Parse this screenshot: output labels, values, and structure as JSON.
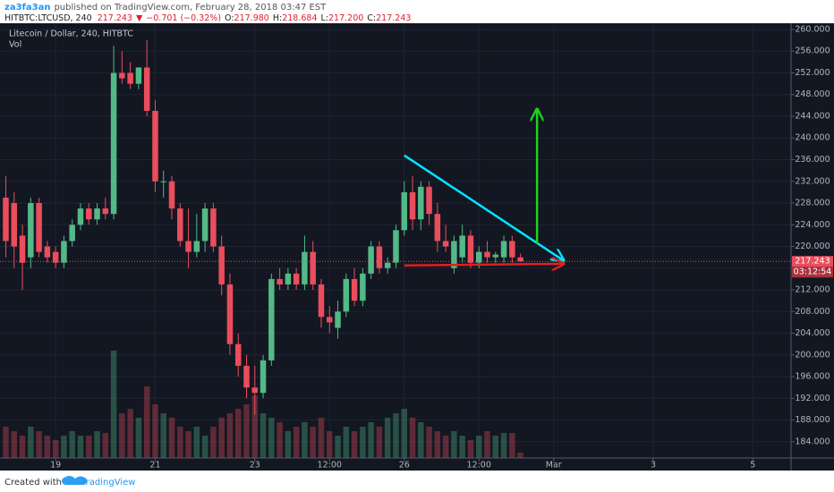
{
  "header": {
    "author": "za3fa3an",
    "published": "published on TradingView.com, February 28, 2018 03:47 EST",
    "symbol": "HITBTC:LTCUSD, 240",
    "last": "217.243",
    "change_arrow": "▼",
    "change": "−0.701 (−0.32%)",
    "ohlc": [
      {
        "label": "O:",
        "value": "217.980"
      },
      {
        "label": "H:",
        "value": "218.684"
      },
      {
        "label": "L:",
        "value": "217.200"
      },
      {
        "label": "C:",
        "value": "217.243"
      }
    ]
  },
  "chart_data": {
    "type": "candlestick",
    "title": "Litecoin / Dollar, 240, HITBTC",
    "volume_label": "Vol",
    "up_color": "#53b987",
    "down_color": "#eb4d5c",
    "x": [
      0,
      1,
      2,
      3,
      4,
      5,
      6,
      7,
      8,
      9,
      10,
      11,
      12,
      13,
      14,
      15,
      16,
      17,
      18,
      19,
      20,
      21,
      22,
      23,
      24,
      25,
      26,
      27,
      28,
      29,
      30,
      31,
      32,
      33,
      34,
      35,
      36,
      37,
      38,
      39,
      40,
      41,
      42,
      43,
      44,
      45,
      46,
      47,
      48,
      49,
      50,
      51,
      52,
      53,
      54,
      55,
      56,
      57,
      58,
      59,
      60,
      61,
      62
    ],
    "open": [
      229,
      228,
      222,
      218,
      228,
      220,
      219,
      217,
      221,
      224,
      227,
      225,
      227,
      226,
      252,
      252,
      250,
      253,
      245,
      232,
      232,
      227,
      221,
      219,
      221,
      227,
      220,
      213,
      202,
      198,
      194,
      193,
      199,
      214,
      213,
      215,
      213,
      219,
      213,
      207,
      205,
      208,
      214,
      210,
      215,
      220,
      216,
      217,
      223,
      230,
      225,
      231,
      226,
      221,
      216,
      218,
      222,
      217,
      219,
      218,
      218,
      221,
      217.98
    ],
    "high": [
      233,
      230,
      224,
      229,
      229,
      221,
      220,
      222,
      225,
      228,
      228,
      228,
      229,
      257,
      256,
      254,
      253,
      258,
      247,
      234,
      233,
      228,
      227,
      226,
      228,
      228,
      222,
      215,
      204,
      200,
      198,
      200,
      215,
      216,
      216,
      216,
      222,
      221,
      214,
      209,
      210,
      215,
      216,
      216,
      221,
      221,
      218,
      224,
      232,
      233,
      232,
      232,
      228,
      224,
      222,
      224,
      223,
      220,
      221,
      219,
      222,
      222,
      218.684
    ],
    "low": [
      218,
      216,
      212,
      216,
      218,
      217,
      216,
      216,
      220,
      223,
      224,
      224,
      225,
      225,
      250,
      249,
      249,
      244,
      230,
      229,
      225,
      220,
      216,
      218,
      219,
      219,
      211,
      200,
      196,
      192,
      189,
      192,
      198,
      212,
      212,
      212,
      212,
      212,
      205,
      204,
      203,
      207,
      209,
      209,
      214,
      215,
      215,
      216,
      222,
      223,
      223,
      224,
      219,
      219,
      215,
      217,
      216,
      216,
      217,
      217,
      217,
      217,
      217.2
    ],
    "close": [
      221,
      220,
      217,
      228,
      219,
      218,
      217,
      221,
      224,
      227,
      225,
      227,
      226,
      252,
      251,
      250,
      253,
      245,
      232,
      232,
      227,
      221,
      219,
      221,
      227,
      220,
      213,
      202,
      198,
      194,
      193,
      199,
      214,
      213,
      215,
      213,
      219,
      213,
      207,
      206,
      208,
      214,
      210,
      215,
      220,
      216,
      217,
      223,
      230,
      225,
      231,
      226,
      221,
      220,
      221,
      222,
      217,
      219,
      218,
      218.5,
      221,
      218,
      217.243
    ],
    "volume": [
      35,
      30,
      25,
      35,
      30,
      25,
      20,
      25,
      30,
      25,
      25,
      30,
      28,
      120,
      50,
      55,
      45,
      80,
      60,
      50,
      45,
      35,
      30,
      35,
      25,
      35,
      45,
      50,
      55,
      60,
      70,
      50,
      45,
      40,
      30,
      35,
      40,
      35,
      45,
      30,
      25,
      35,
      30,
      35,
      40,
      35,
      45,
      50,
      55,
      45,
      40,
      35,
      30,
      25,
      30,
      25,
      20,
      25,
      30,
      25,
      28,
      28,
      6
    ],
    "vlim": [
      0,
      150
    ],
    "xlim": [
      -0.7,
      94.6
    ],
    "ylim": [
      181,
      261.15
    ],
    "xticks": [
      {
        "value": 6,
        "label": "19"
      },
      {
        "value": 18,
        "label": "21"
      },
      {
        "value": 30,
        "label": "23"
      },
      {
        "value": 39,
        "label": "12:00"
      },
      {
        "value": 48,
        "label": "26"
      },
      {
        "value": 57,
        "label": "12:00"
      },
      {
        "value": 66,
        "label": "Mar"
      },
      {
        "value": 78,
        "label": "3"
      },
      {
        "value": 90,
        "label": "5"
      }
    ],
    "yticks": [
      {
        "value": 184,
        "label": "184.000"
      },
      {
        "value": 188,
        "label": "188.000"
      },
      {
        "value": 192,
        "label": "192.000"
      },
      {
        "value": 196,
        "label": "196.000"
      },
      {
        "value": 200,
        "label": "200.000"
      },
      {
        "value": 204,
        "label": "204.000"
      },
      {
        "value": 208,
        "label": "208.000"
      },
      {
        "value": 212,
        "label": "212.000"
      },
      {
        "value": 216,
        "label": "216.000"
      },
      {
        "value": 220,
        "label": "220.000"
      },
      {
        "value": 224,
        "label": "224.000"
      },
      {
        "value": 228,
        "label": "228.000"
      },
      {
        "value": 232,
        "label": "232.000"
      },
      {
        "value": 236,
        "label": "236.000"
      },
      {
        "value": 240,
        "label": "240.000"
      },
      {
        "value": 244,
        "label": "244.000"
      },
      {
        "value": 248,
        "label": "248.000"
      },
      {
        "value": 252,
        "label": "252.000"
      },
      {
        "value": 256,
        "label": "256.000"
      },
      {
        "value": 260,
        "label": "260.000"
      }
    ],
    "grid": true,
    "last_price": {
      "value": 217.243,
      "label": "217.243"
    },
    "countdown": "03:12:54",
    "drawings": [
      {
        "color": "#00e5ff",
        "x": [
          48,
          67.2
        ],
        "y": [
          236.8,
          217.4
        ]
      },
      {
        "color": "#e02020",
        "x": [
          48,
          67.2
        ],
        "y": [
          216.5,
          216.8
        ]
      },
      {
        "color": "#20d020",
        "x": [
          64,
          64
        ],
        "y": [
          220.5,
          245.3
        ]
      }
    ]
  },
  "footer": {
    "created": "Created with",
    "brand": "TradingView"
  }
}
